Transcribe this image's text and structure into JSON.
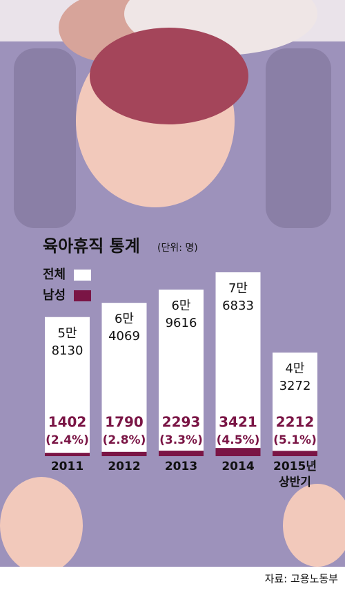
{
  "chart_data": {
    "type": "bar",
    "title": "육아휴직 통계",
    "subtitle": "(단위: 명)",
    "categories": [
      "2011",
      "2012",
      "2013",
      "2014",
      "2015년\n상반기"
    ],
    "series": [
      {
        "name": "전체",
        "color": "#ffffff",
        "values": [
          58130,
          64069,
          69616,
          76833,
          43272
        ],
        "value_labels": [
          "5만\n8130",
          "6만\n4069",
          "6만\n9616",
          "7만\n6833",
          "4만\n3272"
        ]
      },
      {
        "name": "남성",
        "color": "#7a1545",
        "values": [
          1402,
          1790,
          2293,
          3421,
          2212
        ],
        "value_labels": [
          "1402",
          "1790",
          "2293",
          "3421",
          "2212"
        ],
        "share_labels": [
          "(2.4%)",
          "(2.8%)",
          "(3.3%)",
          "(4.5%)",
          "(5.1%)"
        ]
      }
    ],
    "source": "자료: 고용노동부"
  }
}
